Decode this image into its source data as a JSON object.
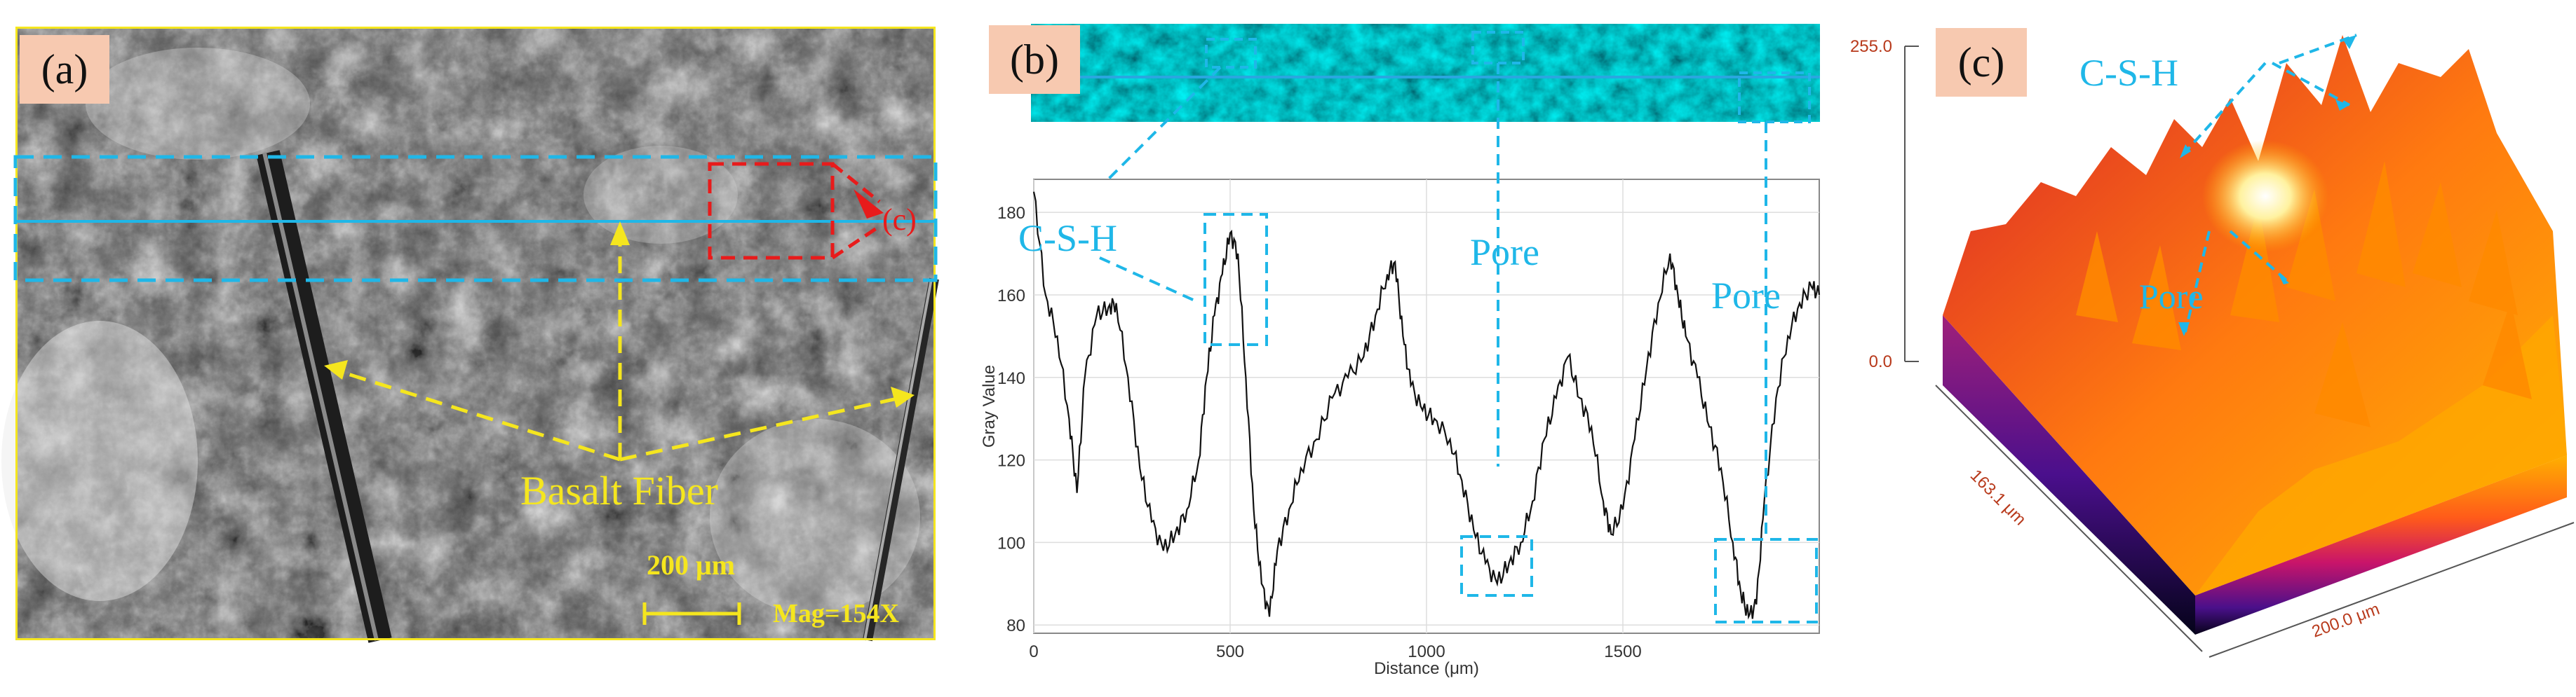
{
  "panels": {
    "a": {
      "tag": "(a)",
      "fiber_label": "Basalt Fiber",
      "scale_label": "200 μm",
      "mag_label": "Mag=154X",
      "roi_label": "(c)"
    },
    "b": {
      "tag": "(b)",
      "csh_label": "C-S-H",
      "pore_label_1": "Pore",
      "pore_label_2": "Pore"
    },
    "c": {
      "tag": "(c)",
      "csh_label": "C-S-H",
      "pore_label": "Pore",
      "z_max": "255.0",
      "z_min": "0.0",
      "y_axis": "163.1 μm",
      "x_axis": "200.0 μm"
    }
  },
  "chart_data": {
    "type": "line",
    "title": "",
    "xlabel": "Distance (μm)",
    "ylabel": "Gray Value",
    "xlim": [
      0,
      2000
    ],
    "ylim": [
      78,
      188
    ],
    "x_ticks": [
      0,
      500,
      1000,
      1500
    ],
    "y_ticks": [
      80,
      100,
      120,
      140,
      160,
      180
    ],
    "grid": true,
    "series": [
      {
        "x": [
          0,
          30,
          60,
          90,
          110,
          130,
          160,
          190,
          210,
          240,
          270,
          300,
          330,
          360,
          390,
          420,
          440,
          460,
          480,
          500,
          520,
          540,
          560,
          580,
          600,
          620,
          650,
          680,
          720,
          760,
          800,
          840,
          870,
          900,
          920,
          940,
          960,
          990,
          1020,
          1060,
          1090,
          1120,
          1150,
          1180,
          1210,
          1240,
          1270,
          1300,
          1330,
          1360,
          1390,
          1420,
          1450,
          1470,
          1500,
          1530,
          1560,
          1590,
          1620,
          1640,
          1660,
          1690,
          1720,
          1750,
          1780,
          1800,
          1820,
          1840,
          1860,
          1890,
          1920,
          1950,
          1980,
          2000
        ],
        "y": [
          185,
          160,
          150,
          130,
          112,
          140,
          155,
          157,
          158,
          140,
          118,
          105,
          98,
          102,
          108,
          120,
          140,
          155,
          165,
          175,
          170,
          140,
          108,
          90,
          82,
          98,
          108,
          118,
          125,
          135,
          140,
          145,
          155,
          165,
          168,
          150,
          138,
          132,
          130,
          125,
          115,
          103,
          95,
          90,
          95,
          100,
          110,
          125,
          135,
          145,
          135,
          128,
          110,
          102,
          108,
          125,
          142,
          158,
          170,
          160,
          150,
          140,
          128,
          118,
          100,
          88,
          82,
          85,
          110,
          135,
          150,
          158,
          162,
          160
        ]
      }
    ]
  }
}
